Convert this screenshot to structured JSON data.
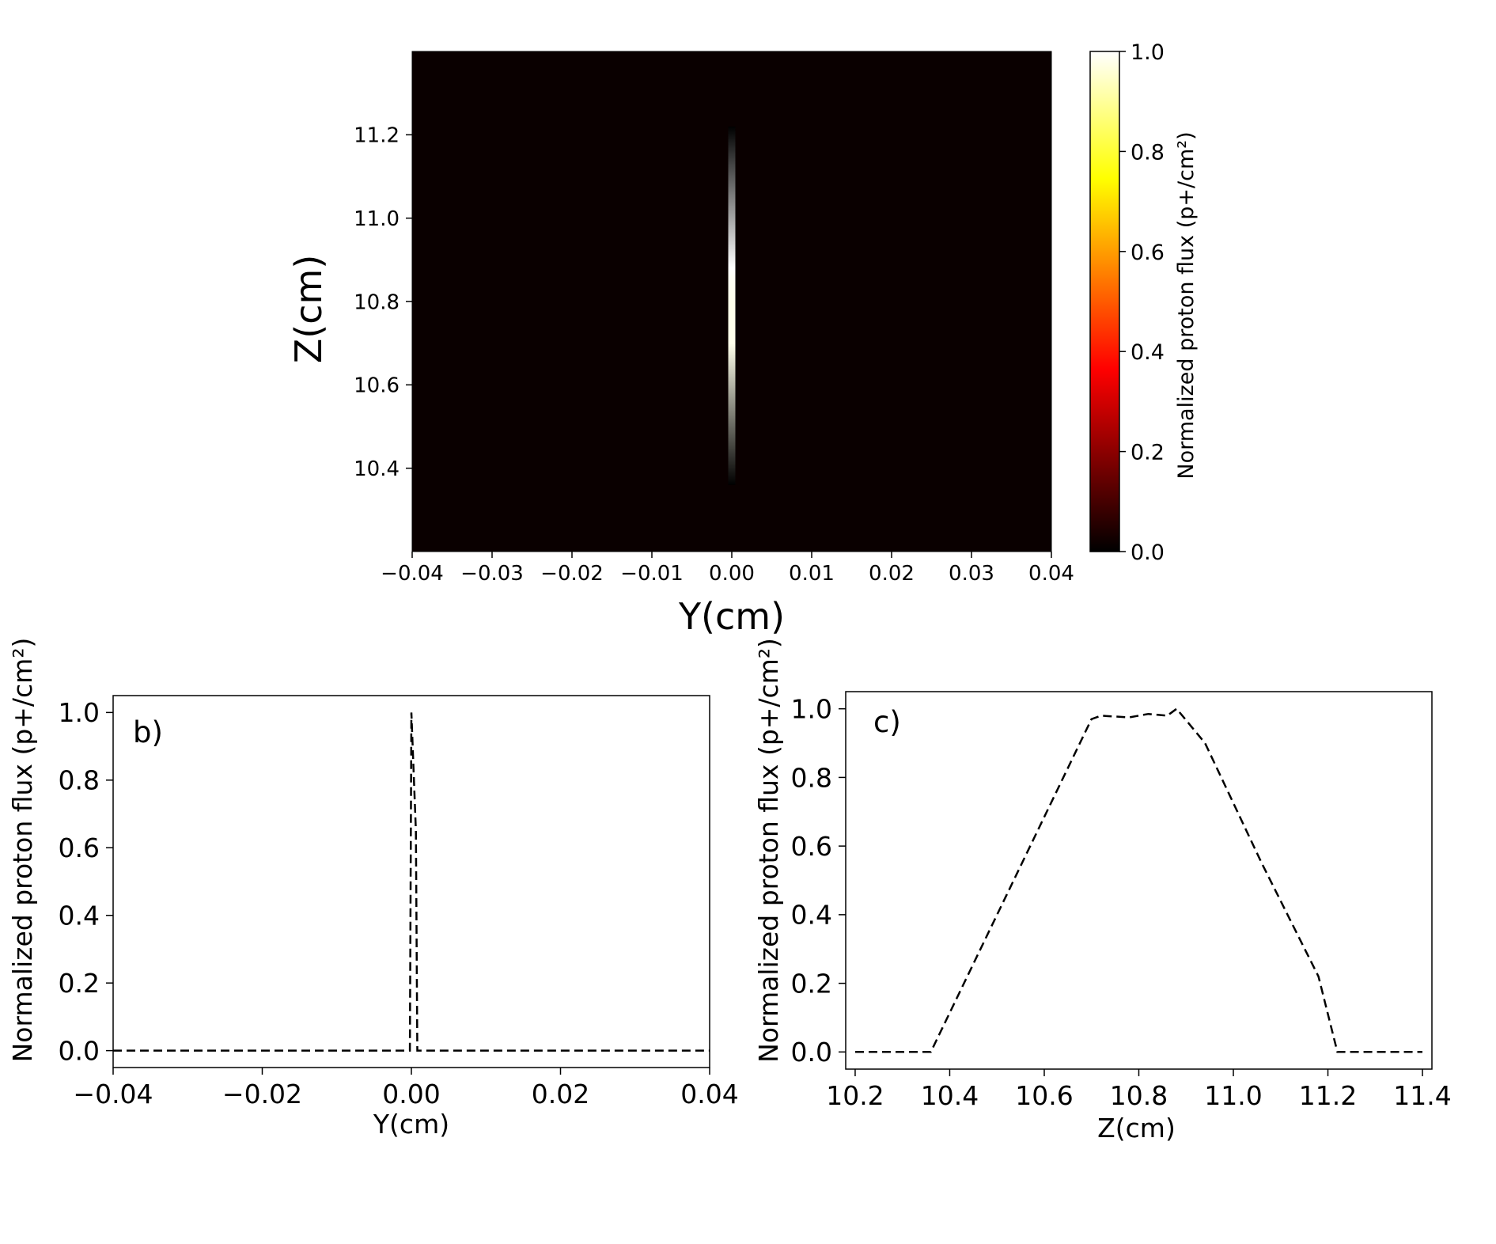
{
  "chart_data": [
    {
      "type": "heatmap",
      "title": "",
      "xlabel": "Y(cm)",
      "ylabel": "Z(cm)",
      "xlim": [
        -0.04,
        0.04
      ],
      "ylim": [
        10.2,
        11.4
      ],
      "xticks": [
        -0.04,
        -0.03,
        -0.02,
        -0.01,
        0.0,
        0.01,
        0.02,
        0.03,
        0.04
      ],
      "xtick_labels": [
        "−0.04",
        "−0.03",
        "−0.02",
        "−0.01",
        "0.00",
        "0.01",
        "0.02",
        "0.03",
        "0.04"
      ],
      "yticks": [
        10.4,
        10.6,
        10.8,
        11.0,
        11.2
      ],
      "ytick_labels": [
        "10.4",
        "10.6",
        "10.8",
        "11.0",
        "11.2"
      ],
      "colormap": "hot",
      "colorbar": {
        "label": "Normalized proton flux (p+/cm²)",
        "range": [
          0.0,
          1.0
        ],
        "ticks": [
          0.0,
          0.2,
          0.4,
          0.6,
          0.8,
          1.0
        ],
        "tick_labels": [
          "0.0",
          "0.2",
          "0.4",
          "0.6",
          "0.8",
          "1.0"
        ]
      },
      "beam": {
        "y_center": 0.0,
        "profile_z": [
          10.36,
          10.7,
          10.72,
          10.8,
          10.86,
          10.88,
          11.22
        ],
        "profile_value": [
          0.0,
          0.98,
          0.98,
          0.98,
          0.99,
          1.0,
          0.0
        ]
      },
      "grid": false
    },
    {
      "type": "line",
      "panel_label": "b)",
      "xlabel": "Y(cm)",
      "ylabel": "Normalized proton flux (p+/cm²)",
      "xlim": [
        -0.04,
        0.04
      ],
      "ylim": [
        -0.05,
        1.05
      ],
      "xticks": [
        -0.04,
        -0.02,
        0.0,
        0.02,
        0.04
      ],
      "xtick_labels": [
        "−0.04",
        "−0.02",
        "0.00",
        "0.02",
        "0.04"
      ],
      "yticks": [
        0.0,
        0.2,
        0.4,
        0.6,
        0.8,
        1.0
      ],
      "ytick_labels": [
        "0.0",
        "0.2",
        "0.4",
        "0.6",
        "0.8",
        "1.0"
      ],
      "line_style": "dashed",
      "series": [
        {
          "x": [
            -0.04,
            -0.0002,
            0.0,
            0.0006,
            0.0008,
            0.04
          ],
          "y": [
            0.0,
            0.0,
            1.0,
            0.65,
            0.0,
            0.0
          ]
        }
      ],
      "grid": false
    },
    {
      "type": "line",
      "panel_label": "c)",
      "xlabel": "Z(cm)",
      "ylabel": "Normalized proton flux (p+/cm²)",
      "xlim": [
        10.18,
        11.42
      ],
      "ylim": [
        -0.05,
        1.05
      ],
      "xticks": [
        10.2,
        10.4,
        10.6,
        10.8,
        11.0,
        11.2,
        11.4
      ],
      "xtick_labels": [
        "10.2",
        "10.4",
        "10.6",
        "10.8",
        "11.0",
        "11.2",
        "11.4"
      ],
      "yticks": [
        0.0,
        0.2,
        0.4,
        0.6,
        0.8,
        1.0
      ],
      "ytick_labels": [
        "0.0",
        "0.2",
        "0.4",
        "0.6",
        "0.8",
        "1.0"
      ],
      "line_style": "dashed",
      "series": [
        {
          "x": [
            10.2,
            10.36,
            10.7,
            10.72,
            10.78,
            10.82,
            10.86,
            10.88,
            10.94,
            11.06,
            11.18,
            11.22,
            11.4
          ],
          "y": [
            0.0,
            0.0,
            0.97,
            0.98,
            0.975,
            0.985,
            0.98,
            1.0,
            0.9,
            0.55,
            0.22,
            0.0,
            0.0
          ]
        }
      ],
      "grid": false
    }
  ]
}
